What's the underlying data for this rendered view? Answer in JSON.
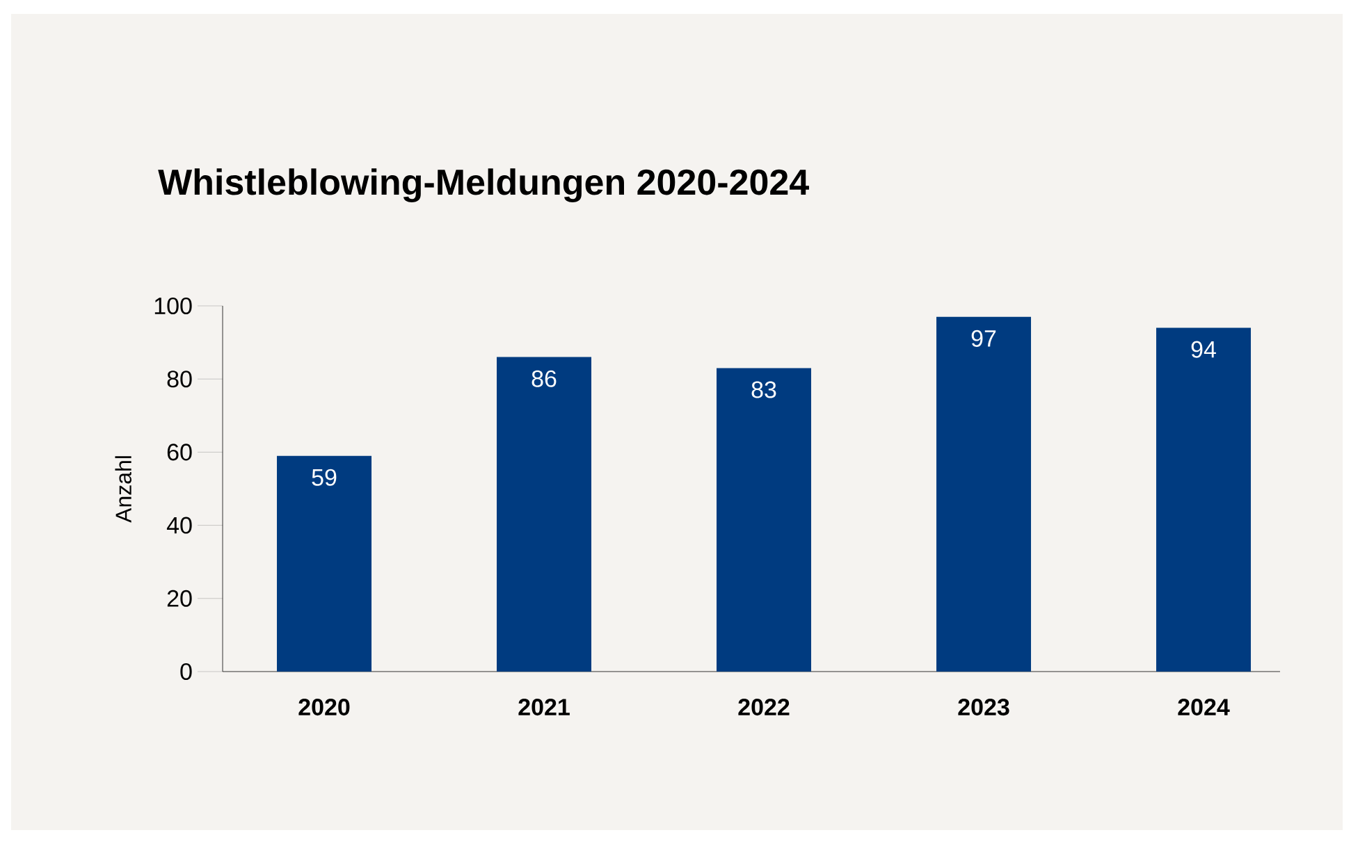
{
  "chart_data": {
    "type": "bar",
    "title": "Whistleblowing-Meldungen 2020-2024",
    "ylabel": "Anzahl",
    "categories": [
      "2020",
      "2021",
      "2022",
      "2023",
      "2024"
    ],
    "values": [
      59,
      86,
      83,
      97,
      94
    ],
    "color": "#003b80",
    "ylim": [
      0,
      100
    ],
    "yticks": [
      0,
      20,
      40,
      60,
      80,
      100
    ],
    "data_labels": true,
    "grid": false
  }
}
